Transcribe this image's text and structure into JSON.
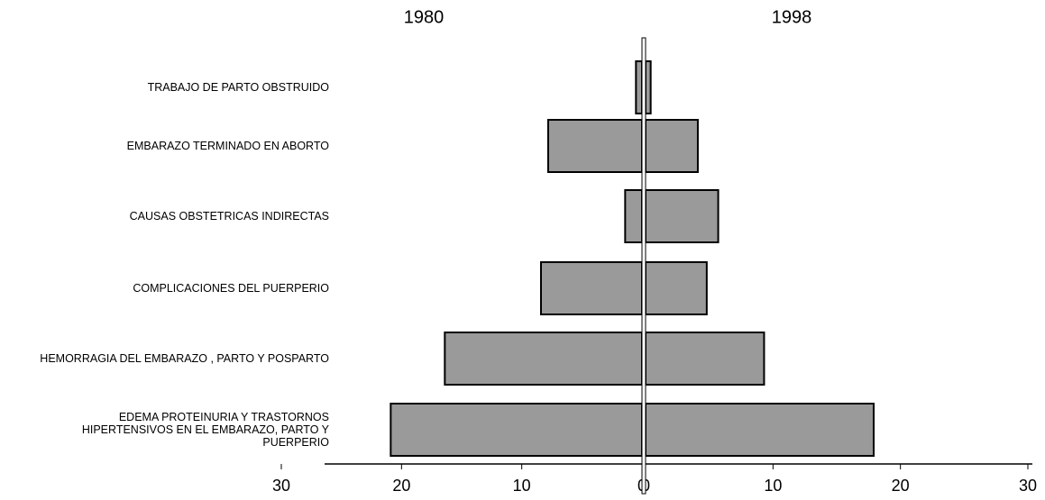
{
  "chart_data": {
    "type": "butterfly",
    "categories": [
      "TRABAJO DE PARTO OBSTRUIDO",
      "EMBARAZO TERMINADO EN ABORTO",
      "CAUSAS OBSTETRICAS INDIRECTAS",
      "COMPLICACIONES DEL PUERPERIO",
      "HEMORRAGIA  DEL EMBARAZO , PARTO Y POSPARTO",
      "EDEMA PROTEINURIA Y TRASTORNOS HIPERTENSIVOS EN EL EMBARAZO, PARTO Y PUERPERIO"
    ],
    "series": [
      {
        "name": "1980",
        "color": "#9a9a9a",
        "values": [
          0.5,
          7.8,
          1.4,
          8.4,
          16.4,
          20.9
        ]
      },
      {
        "name": "1998",
        "color": "#9a9a9a",
        "values": [
          0.4,
          4.1,
          5.7,
          4.8,
          9.3,
          17.9
        ]
      }
    ],
    "xlim": [
      0,
      30
    ],
    "xticks": [
      0,
      10,
      20,
      30
    ]
  }
}
